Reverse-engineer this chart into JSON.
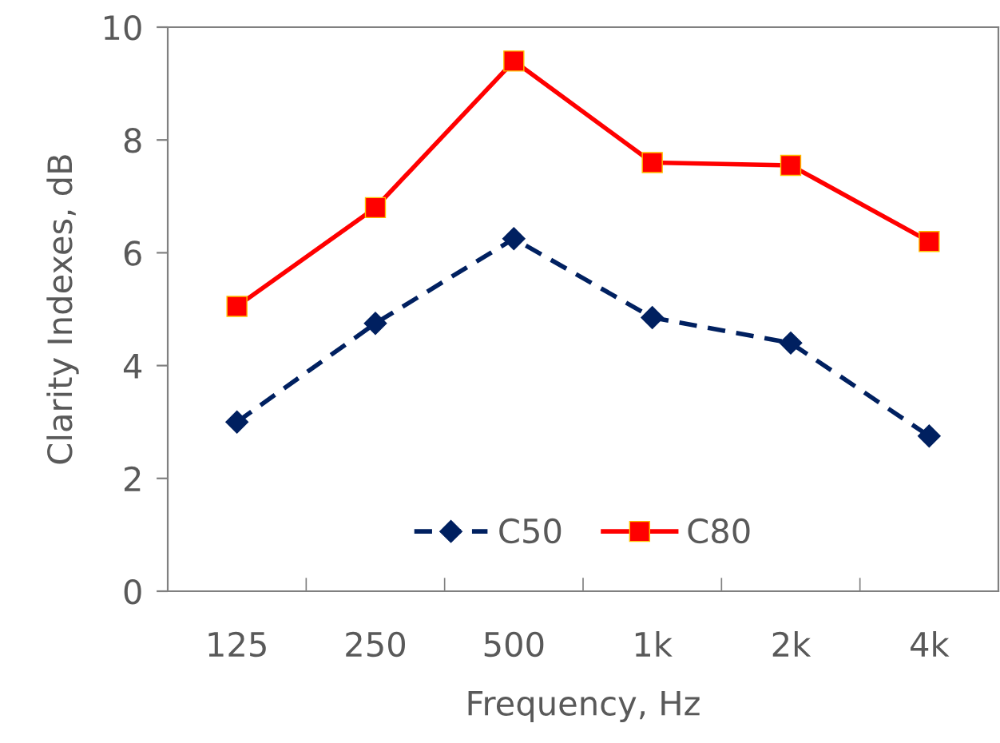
{
  "chart_data": {
    "type": "line",
    "xlabel": "Frequency, Hz",
    "ylabel": "Clarity Indexes, dB",
    "categories": [
      "125",
      "250",
      "500",
      "1k",
      "2k",
      "4k"
    ],
    "series": [
      {
        "name": "C50",
        "color": "#002060",
        "values": [
          3.0,
          4.75,
          6.25,
          4.85,
          4.4,
          2.75
        ],
        "marker": "diamond",
        "line_style": "dashed"
      },
      {
        "name": "C80",
        "color": "#ff0000",
        "values": [
          5.05,
          6.8,
          9.4,
          7.6,
          7.55,
          6.2
        ],
        "marker": "square",
        "line_style": "solid"
      }
    ],
    "ylim": [
      0,
      10
    ],
    "yticks": [
      0,
      2,
      4,
      6,
      8,
      10
    ],
    "grid": false,
    "legend": "bottom"
  }
}
